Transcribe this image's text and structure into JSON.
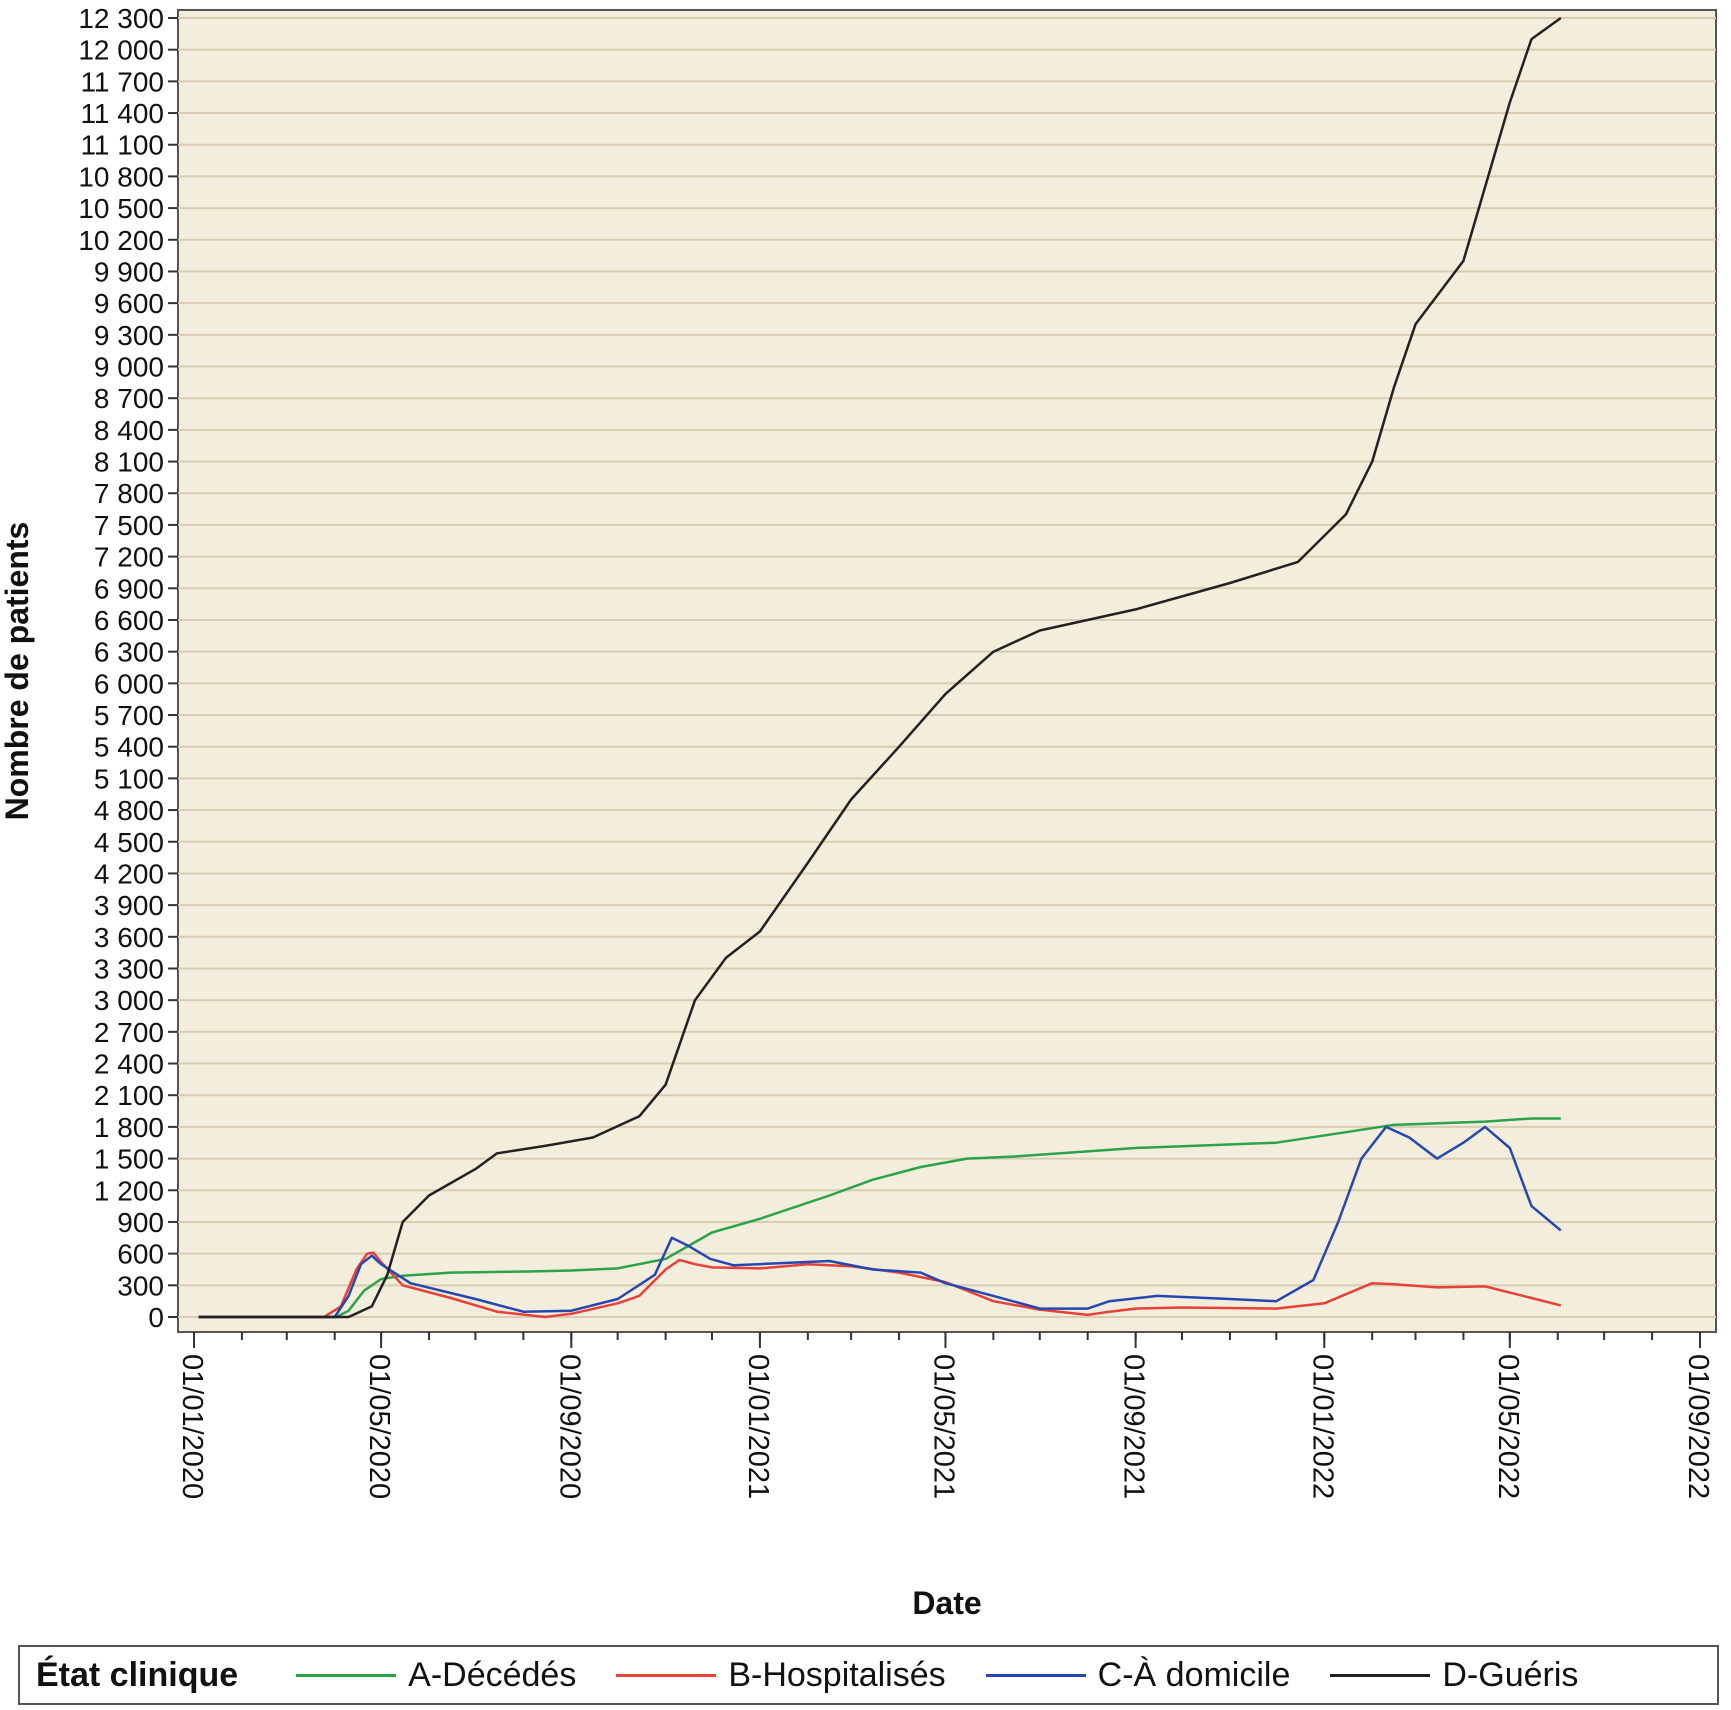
{
  "chart_data": {
    "type": "line",
    "title": "",
    "xlabel": "Date",
    "ylabel": "Nombre de patients",
    "xlim": [
      "2020-01-01",
      "2022-09-01"
    ],
    "ylim": [
      0,
      12300
    ],
    "grid": true,
    "grid_color": "#d9ccb0",
    "plot_background": "#f3eedc",
    "legend_position": "bottom",
    "legend_title": "État clinique",
    "x_ticks": [
      "01/01/2020",
      "01/05/2020",
      "01/09/2020",
      "01/01/2021",
      "01/05/2021",
      "01/09/2021",
      "01/01/2022",
      "01/05/2022",
      "01/09/2022"
    ],
    "x_tick_dates": [
      "2020-01-01",
      "2020-05-01",
      "2020-09-01",
      "2021-01-01",
      "2021-05-01",
      "2021-09-01",
      "2022-01-01",
      "2022-05-01",
      "2022-09-01"
    ],
    "y_ticks": [
      0,
      300,
      600,
      900,
      1200,
      1500,
      1800,
      2100,
      2400,
      2700,
      3000,
      3300,
      3600,
      3900,
      4200,
      4500,
      4800,
      5100,
      5400,
      5700,
      6000,
      6300,
      6600,
      6900,
      7200,
      7500,
      7800,
      8100,
      8400,
      8700,
      9000,
      9300,
      9600,
      9900,
      10200,
      10500,
      10800,
      11100,
      11400,
      11700,
      12000,
      12300
    ],
    "y_tick_labels": [
      "0",
      "300",
      "600",
      "900",
      "1 200",
      "1 500",
      "1 800",
      "2 100",
      "2 400",
      "2 700",
      "3 000",
      "3 300",
      "3 600",
      "3 900",
      "4 200",
      "4 500",
      "4 800",
      "5 100",
      "5 400",
      "5 700",
      "6 000",
      "6 300",
      "6 600",
      "6 900",
      "7 200",
      "7 500",
      "7 800",
      "8 100",
      "8 400",
      "8 700",
      "9 000",
      "9 300",
      "9 600",
      "9 900",
      "10 200",
      "10 500",
      "10 800",
      "11 100",
      "11 400",
      "11 700",
      "12 000",
      "12 300"
    ],
    "series": [
      {
        "name": "A-Décédés",
        "color": "#2ca24a",
        "points": [
          [
            "2020-01-04",
            0
          ],
          [
            "2020-04-02",
            0
          ],
          [
            "2020-04-10",
            60
          ],
          [
            "2020-04-20",
            250
          ],
          [
            "2020-05-01",
            360
          ],
          [
            "2020-05-15",
            390
          ],
          [
            "2020-06-15",
            420
          ],
          [
            "2020-08-01",
            430
          ],
          [
            "2020-09-01",
            440
          ],
          [
            "2020-10-01",
            460
          ],
          [
            "2020-11-01",
            550
          ],
          [
            "2020-12-01",
            800
          ],
          [
            "2021-01-01",
            930
          ],
          [
            "2021-02-15",
            1150
          ],
          [
            "2021-03-15",
            1300
          ],
          [
            "2021-04-15",
            1420
          ],
          [
            "2021-05-15",
            1500
          ],
          [
            "2021-06-15",
            1520
          ],
          [
            "2021-09-01",
            1600
          ],
          [
            "2021-12-01",
            1650
          ],
          [
            "2022-01-15",
            1750
          ],
          [
            "2022-02-15",
            1820
          ],
          [
            "2022-04-15",
            1850
          ],
          [
            "2022-05-15",
            1880
          ],
          [
            "2022-06-03",
            1880
          ]
        ]
      },
      {
        "name": "B-Hospitalisés",
        "color": "#e8403a",
        "points": [
          [
            "2020-01-04",
            0
          ],
          [
            "2020-03-25",
            0
          ],
          [
            "2020-04-05",
            100
          ],
          [
            "2020-04-15",
            450
          ],
          [
            "2020-04-22",
            600
          ],
          [
            "2020-04-26",
            610
          ],
          [
            "2020-05-01",
            520
          ],
          [
            "2020-05-15",
            300
          ],
          [
            "2020-06-15",
            180
          ],
          [
            "2020-07-15",
            50
          ],
          [
            "2020-08-15",
            0
          ],
          [
            "2020-09-01",
            30
          ],
          [
            "2020-10-01",
            130
          ],
          [
            "2020-10-15",
            200
          ],
          [
            "2020-11-01",
            450
          ],
          [
            "2020-11-10",
            540
          ],
          [
            "2020-11-20",
            500
          ],
          [
            "2020-12-01",
            470
          ],
          [
            "2021-01-01",
            460
          ],
          [
            "2021-02-01",
            500
          ],
          [
            "2021-03-01",
            480
          ],
          [
            "2021-04-01",
            420
          ],
          [
            "2021-05-01",
            330
          ],
          [
            "2021-06-01",
            150
          ],
          [
            "2021-07-01",
            70
          ],
          [
            "2021-08-01",
            20
          ],
          [
            "2021-08-15",
            50
          ],
          [
            "2021-09-01",
            80
          ],
          [
            "2021-10-01",
            90
          ],
          [
            "2021-12-01",
            80
          ],
          [
            "2022-01-01",
            130
          ],
          [
            "2022-02-01",
            320
          ],
          [
            "2022-02-15",
            310
          ],
          [
            "2022-03-15",
            280
          ],
          [
            "2022-04-15",
            290
          ],
          [
            "2022-05-15",
            180
          ],
          [
            "2022-06-03",
            110
          ]
        ]
      },
      {
        "name": "C-À domicile",
        "color": "#2747b0",
        "points": [
          [
            "2020-01-04",
            0
          ],
          [
            "2020-04-01",
            0
          ],
          [
            "2020-04-10",
            200
          ],
          [
            "2020-04-18",
            500
          ],
          [
            "2020-04-25",
            580
          ],
          [
            "2020-05-01",
            500
          ],
          [
            "2020-05-20",
            320
          ],
          [
            "2020-07-01",
            170
          ],
          [
            "2020-08-01",
            50
          ],
          [
            "2020-09-01",
            60
          ],
          [
            "2020-10-01",
            170
          ],
          [
            "2020-10-25",
            400
          ],
          [
            "2020-11-05",
            750
          ],
          [
            "2020-11-15",
            680
          ],
          [
            "2020-11-30",
            550
          ],
          [
            "2020-12-15",
            490
          ],
          [
            "2021-01-15",
            510
          ],
          [
            "2021-02-15",
            530
          ],
          [
            "2021-03-15",
            450
          ],
          [
            "2021-04-15",
            420
          ],
          [
            "2021-05-01",
            320
          ],
          [
            "2021-06-01",
            200
          ],
          [
            "2021-07-01",
            80
          ],
          [
            "2021-08-01",
            80
          ],
          [
            "2021-08-15",
            150
          ],
          [
            "2021-09-15",
            200
          ],
          [
            "2021-11-01",
            170
          ],
          [
            "2021-12-01",
            150
          ],
          [
            "2021-12-25",
            350
          ],
          [
            "2022-01-10",
            900
          ],
          [
            "2022-01-25",
            1500
          ],
          [
            "2022-02-10",
            1800
          ],
          [
            "2022-02-25",
            1700
          ],
          [
            "2022-03-15",
            1500
          ],
          [
            "2022-04-01",
            1650
          ],
          [
            "2022-04-15",
            1800
          ],
          [
            "2022-05-01",
            1600
          ],
          [
            "2022-05-15",
            1050
          ],
          [
            "2022-06-03",
            820
          ]
        ]
      },
      {
        "name": "D-Guéris",
        "color": "#222222",
        "points": [
          [
            "2020-01-04",
            0
          ],
          [
            "2020-04-10",
            0
          ],
          [
            "2020-04-25",
            100
          ],
          [
            "2020-05-05",
            400
          ],
          [
            "2020-05-15",
            900
          ],
          [
            "2020-06-01",
            1150
          ],
          [
            "2020-07-01",
            1400
          ],
          [
            "2020-07-15",
            1550
          ],
          [
            "2020-08-15",
            1620
          ],
          [
            "2020-09-15",
            1700
          ],
          [
            "2020-10-15",
            1900
          ],
          [
            "2020-11-01",
            2200
          ],
          [
            "2020-11-20",
            3000
          ],
          [
            "2020-12-10",
            3400
          ],
          [
            "2021-01-01",
            3650
          ],
          [
            "2021-02-01",
            4300
          ],
          [
            "2021-03-01",
            4900
          ],
          [
            "2021-04-01",
            5400
          ],
          [
            "2021-05-01",
            5900
          ],
          [
            "2021-06-01",
            6300
          ],
          [
            "2021-07-01",
            6500
          ],
          [
            "2021-09-01",
            6700
          ],
          [
            "2021-11-01",
            6950
          ],
          [
            "2021-12-15",
            7150
          ],
          [
            "2022-01-15",
            7600
          ],
          [
            "2022-02-01",
            8100
          ],
          [
            "2022-02-15",
            8800
          ],
          [
            "2022-03-01",
            9400
          ],
          [
            "2022-04-01",
            10000
          ],
          [
            "2022-04-15",
            10700
          ],
          [
            "2022-05-01",
            11500
          ],
          [
            "2022-05-15",
            12100
          ],
          [
            "2022-06-03",
            12300
          ]
        ]
      }
    ]
  }
}
